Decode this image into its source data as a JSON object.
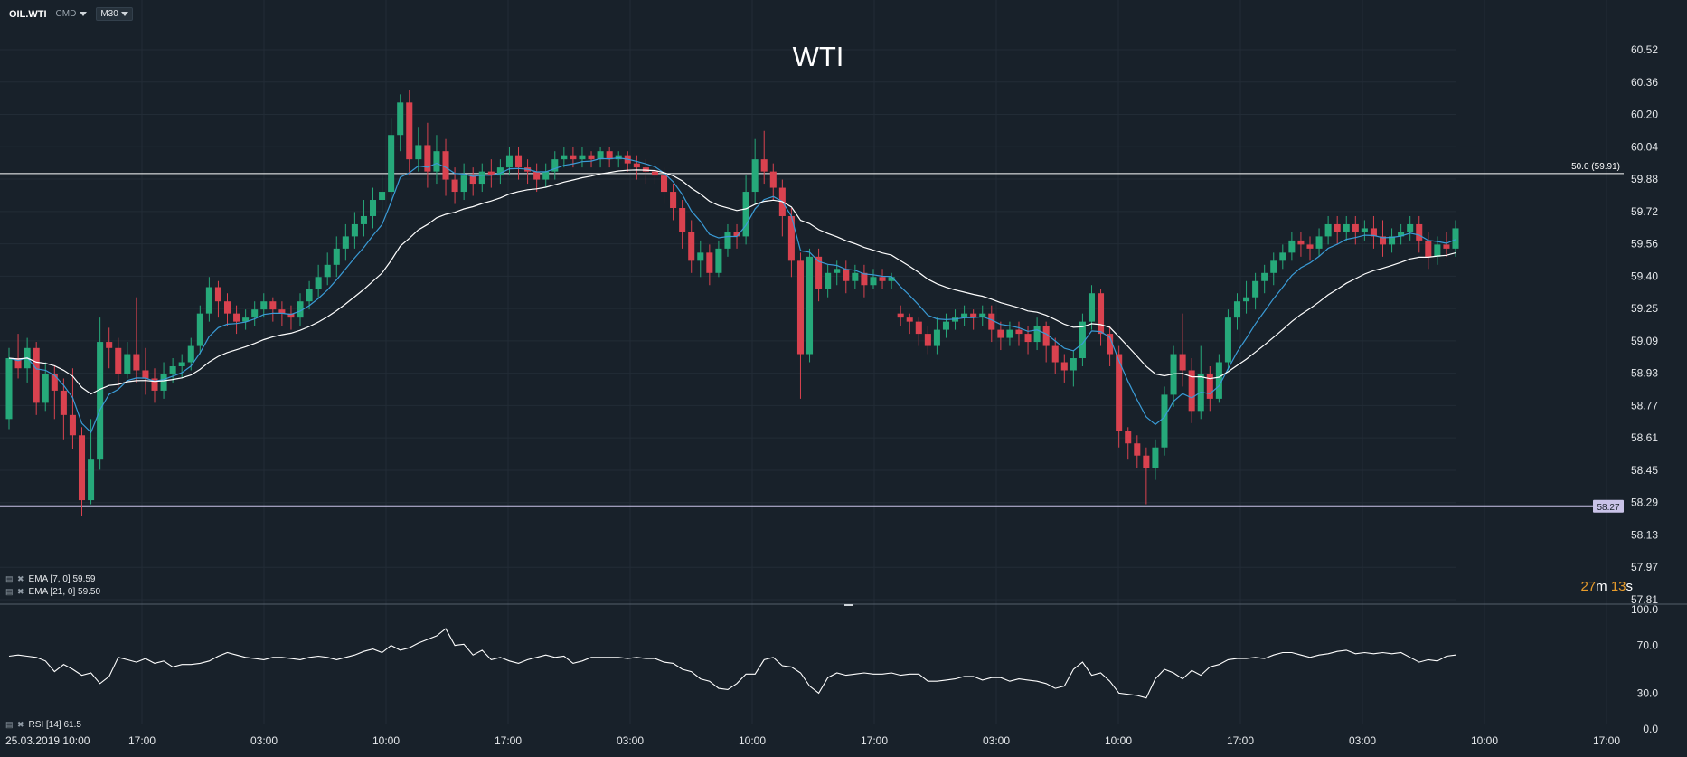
{
  "header": {
    "symbol": "OIL.WTI",
    "type": "CMD",
    "timeframe": "M30"
  },
  "timer": {
    "minutes": "27",
    "m": "m",
    "seconds": "13",
    "s": "s"
  },
  "legend": {
    "ema7": "EMA  [7, 0]  59.59",
    "ema21": "EMA  [21, 0]  59.50",
    "rsi": "RSI  [14]  61.5"
  },
  "colors": {
    "background": "#18212a",
    "bull": "#26a97a",
    "bear": "#d9424f",
    "ema_fast": "#3a9bd6",
    "ema_slow": "#ffffff",
    "grid": "#222c36"
  },
  "chart_data": [
    {
      "type": "candlestick",
      "title": "WTI",
      "y_ticks": [
        "60.52",
        "60.36",
        "60.20",
        "60.04",
        "59.88",
        "59.72",
        "59.56",
        "59.40",
        "59.25",
        "59.09",
        "58.93",
        "58.77",
        "58.61",
        "58.45",
        "58.29",
        "58.13",
        "57.97",
        "57.81"
      ],
      "ylim": [
        57.81,
        60.52
      ],
      "x_ticks": [
        "25.03.2019  10:00",
        "17:00",
        "03:00",
        "10:00",
        "17:00",
        "03:00",
        "10:00",
        "17:00",
        "03:00",
        "10:00",
        "17:00",
        "03:00",
        "10:00",
        "17:00"
      ],
      "levels": [
        {
          "value": 59.91,
          "label": "50.0 (59.91)"
        },
        {
          "value": 58.27,
          "label": "58.27"
        }
      ],
      "candles": [
        [
          58.7,
          59.0,
          58.65,
          59.05
        ],
        [
          59.0,
          58.95,
          58.9,
          59.12
        ],
        [
          58.95,
          59.05,
          58.88,
          59.1
        ],
        [
          59.05,
          58.78,
          58.72,
          59.08
        ],
        [
          58.78,
          58.92,
          58.74,
          58.98
        ],
        [
          58.92,
          58.84,
          58.7,
          58.96
        ],
        [
          58.84,
          58.72,
          58.6,
          58.9
        ],
        [
          58.72,
          58.62,
          58.55,
          58.95
        ],
        [
          58.62,
          58.3,
          58.22,
          58.66
        ],
        [
          58.3,
          58.5,
          58.28,
          58.7
        ],
        [
          58.5,
          59.08,
          58.45,
          59.2
        ],
        [
          59.08,
          59.05,
          58.95,
          59.15
        ],
        [
          59.05,
          58.92,
          58.85,
          59.1
        ],
        [
          58.92,
          59.02,
          58.9,
          59.08
        ],
        [
          59.02,
          58.94,
          58.88,
          59.3
        ],
        [
          58.94,
          58.9,
          58.82,
          59.05
        ],
        [
          58.9,
          58.84,
          58.78,
          58.95
        ],
        [
          58.84,
          58.92,
          58.8,
          58.98
        ],
        [
          58.92,
          58.96,
          58.88,
          59.0
        ],
        [
          58.96,
          58.98,
          58.9,
          59.02
        ],
        [
          58.98,
          59.06,
          58.94,
          59.1
        ],
        [
          59.06,
          59.22,
          59.02,
          59.26
        ],
        [
          59.22,
          59.35,
          59.18,
          59.4
        ],
        [
          59.35,
          59.28,
          59.2,
          59.38
        ],
        [
          59.28,
          59.22,
          59.16,
          59.32
        ],
        [
          59.22,
          59.18,
          59.12,
          59.26
        ],
        [
          59.18,
          59.2,
          59.14,
          59.24
        ],
        [
          59.2,
          59.24,
          59.16,
          59.28
        ],
        [
          59.24,
          59.28,
          59.2,
          59.32
        ],
        [
          59.28,
          59.24,
          59.18,
          59.3
        ],
        [
          59.24,
          59.22,
          59.16,
          59.28
        ],
        [
          59.22,
          59.2,
          59.14,
          59.26
        ],
        [
          59.2,
          59.28,
          59.16,
          59.32
        ],
        [
          59.28,
          59.34,
          59.24,
          59.38
        ],
        [
          59.34,
          59.4,
          59.3,
          59.46
        ],
        [
          59.4,
          59.46,
          59.36,
          59.52
        ],
        [
          59.46,
          59.54,
          59.4,
          59.6
        ],
        [
          59.54,
          59.6,
          59.48,
          59.66
        ],
        [
          59.6,
          59.66,
          59.54,
          59.72
        ],
        [
          59.66,
          59.7,
          59.6,
          59.78
        ],
        [
          59.7,
          59.78,
          59.64,
          59.84
        ],
        [
          59.78,
          59.82,
          59.72,
          59.9
        ],
        [
          59.82,
          60.1,
          59.78,
          60.18
        ],
        [
          60.1,
          60.26,
          60.02,
          60.3
        ],
        [
          60.26,
          59.98,
          59.9,
          60.32
        ],
        [
          59.98,
          60.05,
          59.92,
          60.14
        ],
        [
          60.05,
          59.92,
          59.84,
          60.16
        ],
        [
          59.92,
          60.02,
          59.86,
          60.1
        ],
        [
          60.02,
          59.88,
          59.8,
          60.08
        ],
        [
          59.88,
          59.82,
          59.76,
          59.94
        ],
        [
          59.82,
          59.9,
          59.78,
          59.96
        ],
        [
          59.9,
          59.86,
          59.8,
          59.94
        ],
        [
          59.86,
          59.92,
          59.82,
          59.96
        ],
        [
          59.92,
          59.9,
          59.84,
          59.98
        ],
        [
          59.9,
          59.94,
          59.86,
          59.98
        ],
        [
          59.94,
          60.0,
          59.9,
          60.04
        ],
        [
          60.0,
          59.94,
          59.88,
          60.04
        ],
        [
          59.94,
          59.92,
          59.86,
          59.98
        ],
        [
          59.92,
          59.88,
          59.82,
          59.96
        ],
        [
          59.88,
          59.92,
          59.84,
          59.96
        ],
        [
          59.92,
          59.98,
          59.88,
          60.02
        ],
        [
          59.98,
          60.0,
          59.94,
          60.04
        ],
        [
          60.0,
          59.98,
          59.94,
          60.04
        ],
        [
          59.98,
          60.0,
          59.94,
          60.04
        ],
        [
          60.0,
          59.98,
          59.94,
          60.02
        ],
        [
          59.98,
          60.02,
          59.94,
          60.04
        ],
        [
          60.02,
          59.98,
          59.94,
          60.04
        ],
        [
          59.98,
          60.0,
          59.94,
          60.02
        ],
        [
          60.0,
          59.96,
          59.92,
          60.02
        ],
        [
          59.96,
          59.94,
          59.88,
          60.0
        ],
        [
          59.94,
          59.92,
          59.86,
          59.98
        ],
        [
          59.92,
          59.9,
          59.86,
          59.96
        ],
        [
          59.9,
          59.82,
          59.76,
          59.94
        ],
        [
          59.82,
          59.74,
          59.68,
          59.86
        ],
        [
          59.74,
          59.62,
          59.54,
          59.78
        ],
        [
          59.62,
          59.48,
          59.42,
          59.68
        ],
        [
          59.48,
          59.52,
          59.4,
          59.58
        ],
        [
          59.52,
          59.42,
          59.36,
          59.56
        ],
        [
          59.42,
          59.54,
          59.4,
          59.58
        ],
        [
          59.54,
          59.62,
          59.5,
          59.66
        ],
        [
          59.62,
          59.6,
          59.54,
          59.66
        ],
        [
          59.6,
          59.82,
          59.56,
          59.9
        ],
        [
          59.82,
          59.98,
          59.76,
          60.08
        ],
        [
          59.98,
          59.92,
          59.86,
          60.12
        ],
        [
          59.92,
          59.84,
          59.78,
          59.96
        ],
        [
          59.84,
          59.7,
          59.6,
          59.88
        ],
        [
          59.7,
          59.48,
          59.4,
          59.74
        ],
        [
          59.48,
          59.02,
          58.8,
          59.52
        ],
        [
          59.02,
          59.5,
          58.98,
          59.54
        ],
        [
          59.5,
          59.34,
          59.28,
          59.54
        ],
        [
          59.34,
          59.42,
          59.3,
          59.46
        ],
        [
          59.42,
          59.44,
          59.36,
          59.48
        ],
        [
          59.44,
          59.38,
          59.32,
          59.48
        ],
        [
          59.38,
          59.42,
          59.34,
          59.46
        ],
        [
          59.42,
          59.36,
          59.3,
          59.46
        ],
        [
          59.36,
          59.4,
          59.34,
          59.44
        ],
        [
          59.4,
          59.38,
          59.34,
          59.44
        ],
        [
          59.38,
          59.4,
          59.34,
          59.42
        ],
        [
          59.22,
          59.2,
          59.16,
          59.26
        ],
        [
          59.2,
          59.18,
          59.12,
          59.22
        ],
        [
          59.18,
          59.12,
          59.06,
          59.2
        ],
        [
          59.12,
          59.06,
          59.02,
          59.16
        ],
        [
          59.06,
          59.14,
          59.02,
          59.2
        ],
        [
          59.14,
          59.18,
          59.1,
          59.22
        ],
        [
          59.18,
          59.2,
          59.14,
          59.24
        ],
        [
          59.2,
          59.22,
          59.16,
          59.26
        ],
        [
          59.22,
          59.2,
          59.14,
          59.24
        ],
        [
          59.2,
          59.22,
          59.16,
          59.26
        ],
        [
          59.22,
          59.14,
          59.08,
          59.26
        ],
        [
          59.14,
          59.1,
          59.04,
          59.18
        ],
        [
          59.1,
          59.14,
          59.06,
          59.18
        ],
        [
          59.14,
          59.12,
          59.06,
          59.18
        ],
        [
          59.12,
          59.08,
          59.02,
          59.16
        ],
        [
          59.08,
          59.16,
          59.04,
          59.2
        ],
        [
          59.16,
          59.06,
          58.98,
          59.18
        ],
        [
          59.06,
          58.98,
          58.92,
          59.1
        ],
        [
          58.98,
          58.94,
          58.88,
          59.02
        ],
        [
          58.94,
          59.0,
          58.86,
          59.04
        ],
        [
          59.0,
          59.18,
          58.96,
          59.22
        ],
        [
          59.18,
          59.32,
          59.14,
          59.36
        ],
        [
          59.32,
          59.12,
          59.06,
          59.34
        ],
        [
          59.12,
          59.02,
          58.96,
          59.16
        ],
        [
          59.02,
          58.64,
          58.56,
          59.06
        ],
        [
          58.64,
          58.58,
          58.5,
          58.66
        ],
        [
          58.58,
          58.52,
          58.46,
          58.62
        ],
        [
          58.52,
          58.46,
          58.28,
          58.56
        ],
        [
          58.46,
          58.56,
          58.4,
          58.6
        ],
        [
          58.56,
          58.82,
          58.52,
          58.86
        ],
        [
          58.82,
          59.02,
          58.76,
          59.06
        ],
        [
          59.02,
          58.94,
          58.86,
          59.22
        ],
        [
          58.94,
          58.74,
          58.68,
          59.0
        ],
        [
          58.74,
          58.92,
          58.7,
          59.06
        ],
        [
          58.92,
          58.8,
          58.74,
          58.96
        ],
        [
          58.8,
          58.98,
          58.78,
          59.02
        ],
        [
          58.98,
          59.2,
          58.94,
          59.24
        ],
        [
          59.2,
          59.28,
          59.14,
          59.32
        ],
        [
          59.28,
          59.3,
          59.22,
          59.38
        ],
        [
          59.3,
          59.38,
          59.24,
          59.42
        ],
        [
          59.38,
          59.42,
          59.32,
          59.46
        ],
        [
          59.42,
          59.48,
          59.36,
          59.52
        ],
        [
          59.48,
          59.52,
          59.44,
          59.56
        ],
        [
          59.52,
          59.58,
          59.48,
          59.62
        ],
        [
          59.58,
          59.56,
          59.5,
          59.62
        ],
        [
          59.56,
          59.54,
          59.48,
          59.6
        ],
        [
          59.54,
          59.6,
          59.5,
          59.64
        ],
        [
          59.6,
          59.66,
          59.56,
          59.7
        ],
        [
          59.66,
          59.62,
          59.56,
          59.7
        ],
        [
          59.62,
          59.66,
          59.58,
          59.7
        ],
        [
          59.66,
          59.62,
          59.56,
          59.7
        ],
        [
          59.62,
          59.64,
          59.58,
          59.68
        ],
        [
          59.64,
          59.6,
          59.54,
          59.7
        ],
        [
          59.6,
          59.56,
          59.5,
          59.68
        ],
        [
          59.56,
          59.6,
          59.52,
          59.64
        ],
        [
          59.6,
          59.62,
          59.56,
          59.66
        ],
        [
          59.62,
          59.66,
          59.58,
          59.7
        ],
        [
          59.66,
          59.58,
          59.52,
          59.7
        ],
        [
          59.58,
          59.5,
          59.44,
          59.62
        ],
        [
          59.5,
          59.56,
          59.46,
          59.6
        ],
        [
          59.56,
          59.54,
          59.5,
          59.62
        ],
        [
          59.54,
          59.64,
          59.5,
          59.68
        ]
      ]
    },
    {
      "type": "line",
      "title": "RSI [14]",
      "y_ticks": [
        "100.0",
        "70.0",
        "30.0",
        "0.0"
      ],
      "ylim": [
        0,
        100
      ],
      "values": [
        61,
        62,
        61,
        60,
        57,
        48,
        54,
        50,
        45,
        47,
        38,
        44,
        60,
        58,
        56,
        59,
        55,
        57,
        52,
        54,
        54,
        55,
        57,
        61,
        64,
        62,
        60,
        59,
        58,
        60,
        60,
        59,
        58,
        60,
        61,
        60,
        58,
        60,
        62,
        65,
        67,
        64,
        70,
        66,
        68,
        72,
        75,
        78,
        84,
        70,
        71,
        62,
        66,
        58,
        60,
        57,
        55,
        58,
        60,
        62,
        60,
        61,
        55,
        57,
        60,
        60,
        60,
        60,
        59,
        60,
        59,
        59,
        56,
        55,
        50,
        48,
        42,
        40,
        34,
        33,
        38,
        46,
        46,
        58,
        60,
        53,
        52,
        47,
        36,
        30,
        43,
        47,
        45,
        46,
        47,
        46,
        46,
        47,
        45,
        46,
        46,
        40,
        40,
        41,
        42,
        44,
        44,
        41,
        43,
        43,
        40,
        42,
        41,
        40,
        38,
        34,
        36,
        50,
        56,
        45,
        47,
        40,
        30,
        29,
        28,
        26,
        42,
        50,
        47,
        42,
        49,
        45,
        52,
        54,
        58,
        59,
        59,
        60,
        59,
        62,
        64,
        64,
        62,
        60,
        62,
        63,
        65,
        66,
        63,
        64,
        63,
        64,
        63,
        64,
        60,
        56,
        58,
        57,
        61,
        62
      ]
    }
  ]
}
